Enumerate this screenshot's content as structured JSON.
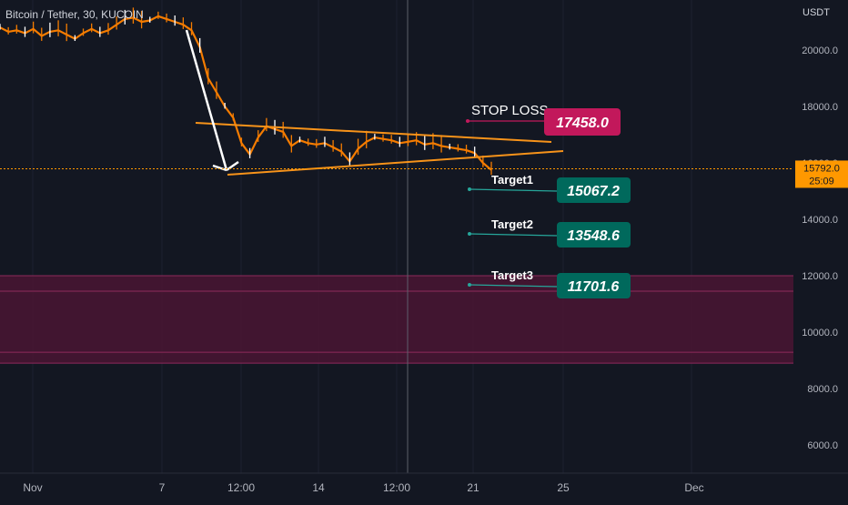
{
  "header": {
    "symbol_title": "Bitcoin / Tether, 30, KUCOIN",
    "currency": "USDT"
  },
  "colors": {
    "background": "#131722",
    "candle_up": "#ffffff",
    "candle_down": "#f57c00",
    "trendline": "#f7931a",
    "arrow": "#ffffff",
    "stop_loss": "#c2185b",
    "target": "#00695c",
    "zone": "#4a1533",
    "zone_border": "#8e2a5b",
    "last_price": "#ff9800",
    "crosshair": "#5d606b"
  },
  "price_axis": {
    "ticks": [
      "20000.0",
      "18000.0",
      "16000.0",
      "14000.0",
      "12000.0",
      "10000.0",
      "8000.0",
      "6000.0"
    ]
  },
  "time_axis": {
    "ticks": [
      "Nov",
      "7",
      "12:00",
      "14",
      "12:00",
      "21",
      "25",
      "Dec"
    ]
  },
  "last_price": {
    "value": "15792.0",
    "countdown": "25:09"
  },
  "annotations": {
    "stop_loss": {
      "label": "STOP LOSS",
      "value": "17458.0"
    },
    "targets": [
      {
        "label": "Target1",
        "value": "15067.2"
      },
      {
        "label": "Target2",
        "value": "13548.6"
      },
      {
        "label": "Target3",
        "value": "11701.6"
      }
    ]
  },
  "chart_data": {
    "type": "line",
    "title": "Bitcoin / Tether, 30, KUCOIN",
    "ylabel": "USDT",
    "ylim": [
      5000,
      21700
    ],
    "x_ticks": [
      "Nov",
      "7",
      "12:00",
      "14",
      "12:00",
      "21",
      "25",
      "Dec"
    ],
    "y_ticks": [
      20000,
      18000,
      16000,
      14000,
      12000,
      10000,
      8000,
      6000
    ],
    "series": [
      {
        "values": [
          20800,
          20650,
          20700,
          20600,
          20750,
          20500,
          20650,
          20700,
          20550,
          20400,
          20600,
          20750,
          20600,
          20700,
          20900,
          21100,
          21150,
          21000,
          21050,
          21200,
          21100,
          21000,
          20900,
          20700,
          20100,
          19000,
          18500,
          18000,
          17600,
          16700,
          16300,
          16900,
          17300,
          17200,
          17100,
          16600,
          16800,
          16700,
          16650,
          16700,
          16550,
          16400,
          16050,
          16500,
          16750,
          16900,
          16850,
          16800,
          16700,
          16750,
          16800,
          16650,
          16700,
          16600,
          16550,
          16500,
          16450,
          16350,
          16000,
          15750
        ]
      }
    ],
    "stop_loss": 17458.0,
    "targets": [
      15067.2,
      13548.6,
      11701.6
    ],
    "last_price": 15792.0,
    "zone": [
      8900,
      12000
    ]
  }
}
